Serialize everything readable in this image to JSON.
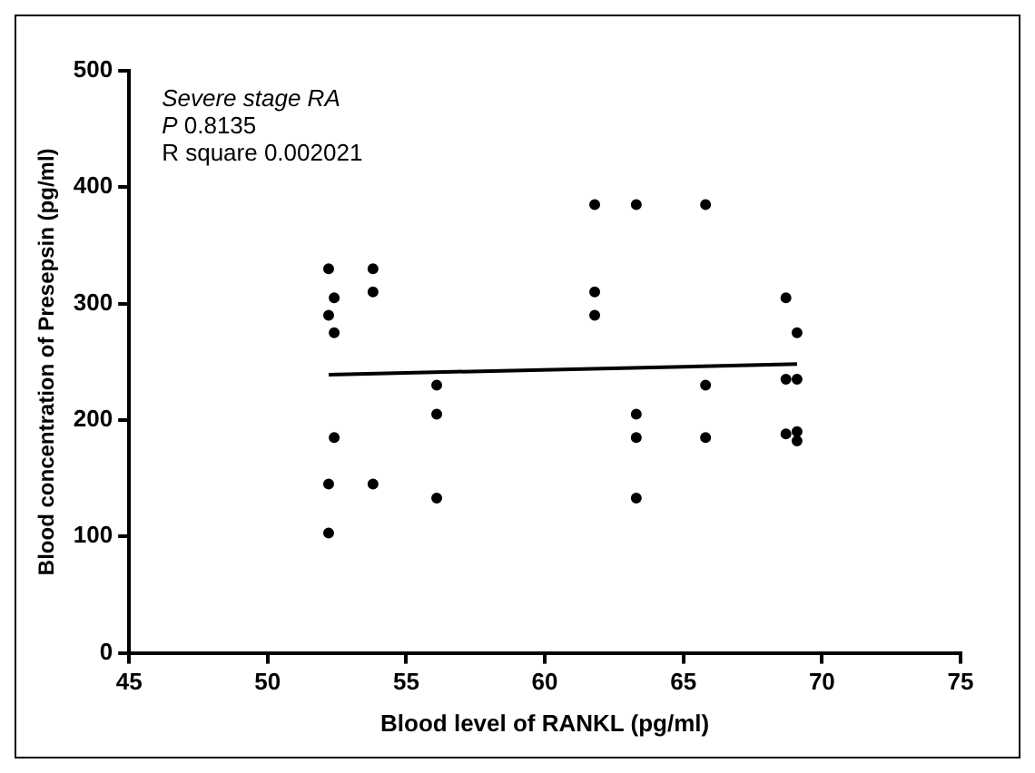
{
  "chart_data": {
    "type": "scatter",
    "xlabel": "Blood level of RANKL (pg/ml)",
    "ylabel": "Blood concentration of Presepsin (pg/ml)",
    "annotations": [
      "Severe stage RA",
      "P 0.8135",
      "R square 0.002021"
    ],
    "xlim": [
      45,
      75
    ],
    "xticks": [
      45,
      50,
      55,
      60,
      65,
      70,
      75
    ],
    "ylim": [
      0,
      500
    ],
    "yticks": [
      0,
      100,
      200,
      300,
      400,
      500
    ],
    "grid": false,
    "legend": false,
    "marker": "circle",
    "series": [
      {
        "color": "#000000",
        "x": [
          52.2,
          52.2,
          52.2,
          52.2,
          52.4,
          52.4,
          52.4,
          53.8,
          53.8,
          53.8,
          56.1,
          56.1,
          56.1,
          61.8,
          61.8,
          61.8,
          63.3,
          63.3,
          63.3,
          63.3,
          65.8,
          65.8,
          65.8,
          68.7,
          68.7,
          68.7,
          69.1,
          69.1,
          69.1,
          69.1
        ],
        "values": [
          330,
          290,
          145,
          103,
          305,
          275,
          185,
          330,
          310,
          145,
          230,
          205,
          133,
          385,
          310,
          290,
          385,
          205,
          185,
          133,
          385,
          230,
          185,
          305,
          235,
          188,
          275,
          235,
          182,
          190
        ]
      },
      {
        "type": "line",
        "color": "#000000",
        "marker": "none",
        "x": [
          52.2,
          69.1
        ],
        "values": [
          239,
          248
        ]
      }
    ]
  }
}
